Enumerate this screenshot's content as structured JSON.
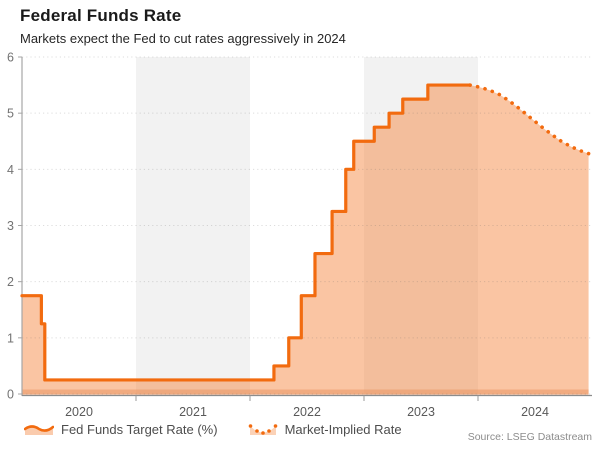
{
  "header": {
    "title": "Federal Funds Rate",
    "subtitle": "Markets expect the Fed to cut rates aggressively in 2024"
  },
  "legend": {
    "items": [
      {
        "label": "Fed Funds Target Rate (%)",
        "style": "solid"
      },
      {
        "label": "Market-Implied Rate",
        "style": "dotted"
      }
    ]
  },
  "source": "Source: LSEG Datastream",
  "colors": {
    "line_orange": "#f26b0f",
    "area_fill": "rgba(243,126,50,0.45)",
    "baseline_strip": "rgba(233,150,100,0.55)",
    "band_gray": "#f2f2f2",
    "gridline": "rgba(100,100,100,0.22)",
    "axis_line": "#a6a6a6",
    "tick_label": "#737373",
    "year_label": "#595959"
  },
  "chart_data": {
    "type": "area",
    "title": "Federal Funds Rate",
    "subtitle": "Markets expect the Fed to cut rates aggressively in 2024",
    "xlabel": "",
    "ylabel": "",
    "x_axis": {
      "start": 2020,
      "end": 2025,
      "tick_years": [
        2020,
        2021,
        2022,
        2023,
        2024
      ],
      "shaded_years": [
        2021,
        2023
      ]
    },
    "y_axis": {
      "min": 0,
      "max": 6,
      "ticks": [
        0,
        1,
        2,
        3,
        4,
        5,
        6
      ]
    },
    "grid": true,
    "legend_position": "bottom",
    "series": [
      {
        "name": "Fed Funds Target Rate (%)",
        "style": "solid-step",
        "points": [
          [
            2020.0,
            1.75
          ],
          [
            2020.17,
            1.25
          ],
          [
            2020.2,
            0.25
          ],
          [
            2022.21,
            0.5
          ],
          [
            2022.34,
            1.0
          ],
          [
            2022.45,
            1.75
          ],
          [
            2022.57,
            2.5
          ],
          [
            2022.72,
            3.25
          ],
          [
            2022.84,
            4.0
          ],
          [
            2022.91,
            4.5
          ],
          [
            2023.09,
            4.75
          ],
          [
            2023.22,
            5.0
          ],
          [
            2023.34,
            5.25
          ],
          [
            2023.56,
            5.5
          ],
          [
            2023.93,
            5.5
          ]
        ]
      },
      {
        "name": "Market-Implied Rate",
        "style": "dotted",
        "points": [
          [
            2023.93,
            5.5
          ],
          [
            2024.02,
            5.46
          ],
          [
            2024.1,
            5.41
          ],
          [
            2024.19,
            5.33
          ],
          [
            2024.28,
            5.21
          ],
          [
            2024.37,
            5.07
          ],
          [
            2024.46,
            4.92
          ],
          [
            2024.55,
            4.77
          ],
          [
            2024.64,
            4.63
          ],
          [
            2024.73,
            4.5
          ],
          [
            2024.82,
            4.4
          ],
          [
            2024.9,
            4.33
          ],
          [
            2024.97,
            4.28
          ]
        ]
      }
    ]
  }
}
